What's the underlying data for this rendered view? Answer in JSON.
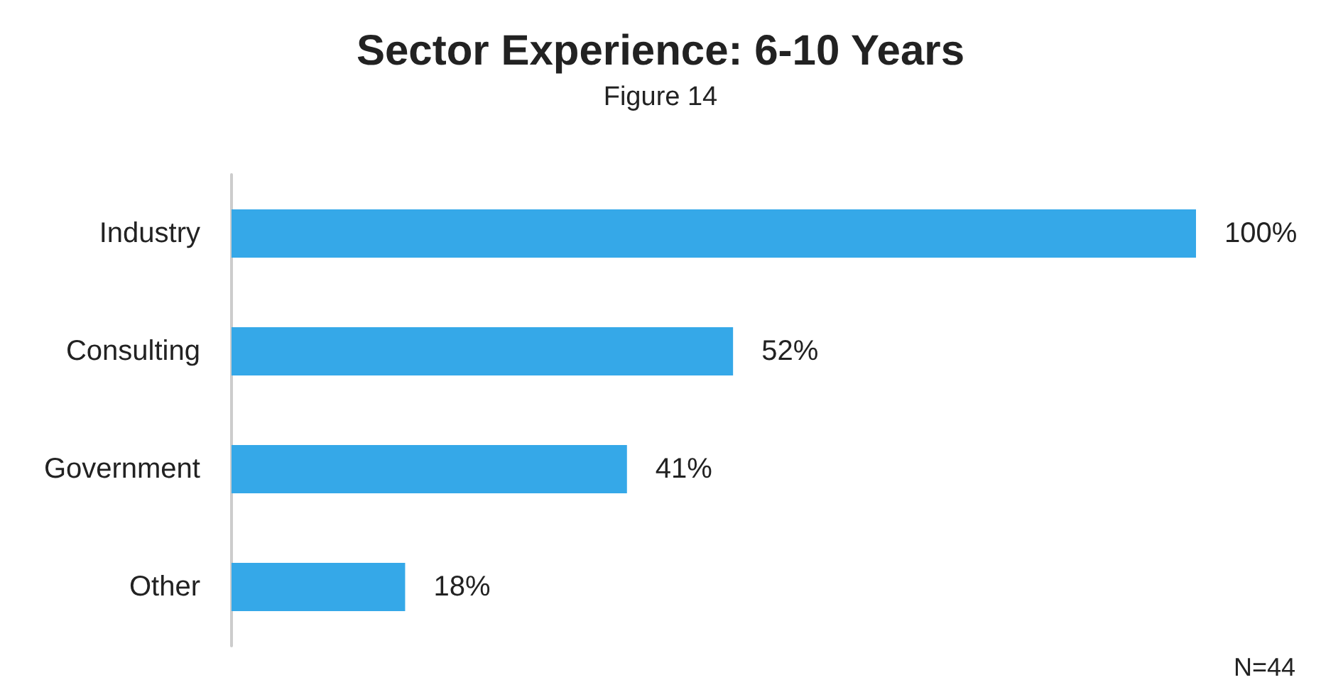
{
  "chart_data": {
    "type": "bar",
    "orientation": "horizontal",
    "title": "Sector Experience: 6-10 Years",
    "subtitle": "Figure 14",
    "categories": [
      "Industry",
      "Consulting",
      "Government",
      "Other"
    ],
    "values": [
      100,
      52,
      41,
      18
    ],
    "value_labels": [
      "100%",
      "52%",
      "41%",
      "18%"
    ],
    "color": "#35a8e8",
    "annotations": [
      "N=44"
    ]
  }
}
